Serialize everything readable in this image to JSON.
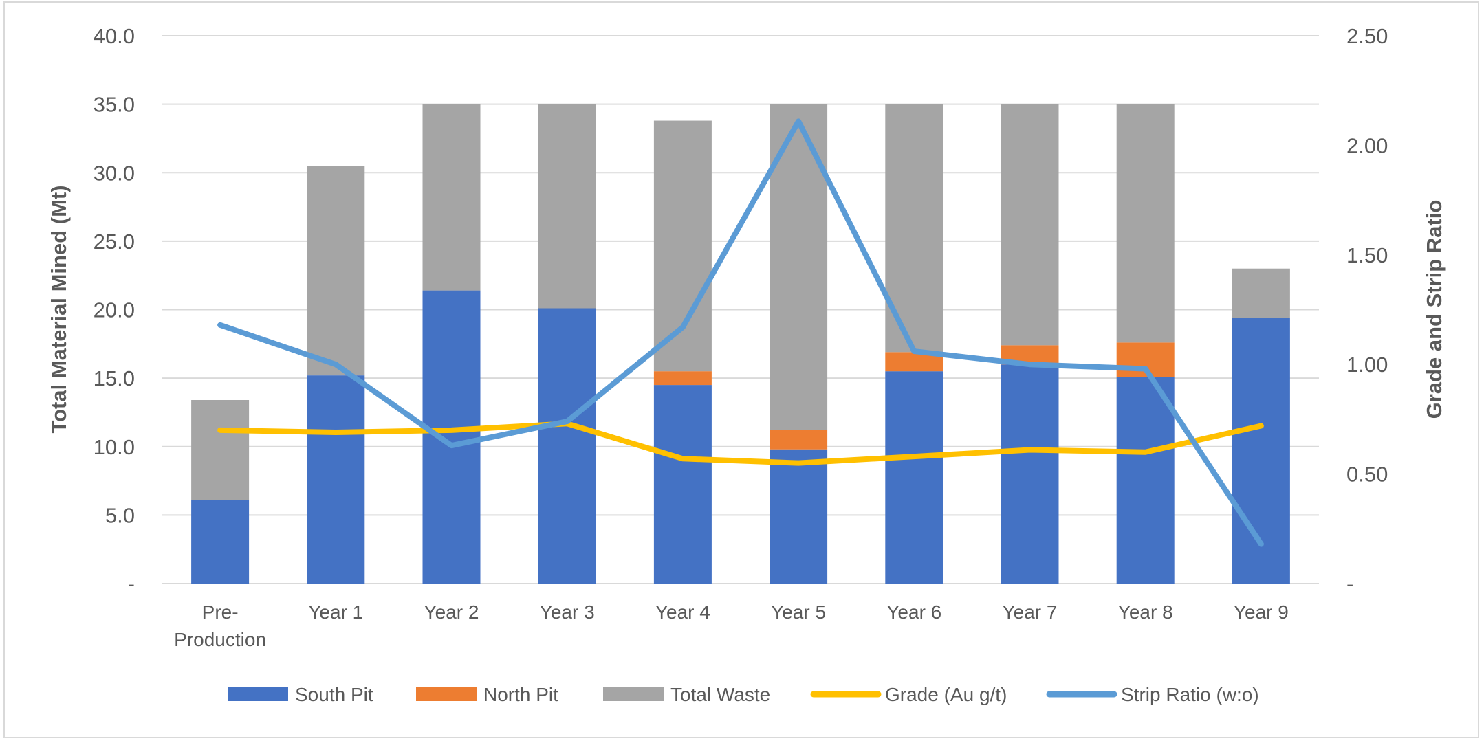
{
  "chart_data": {
    "type": "bar",
    "stacked": true,
    "categories": [
      "Pre-Production",
      "Year 1",
      "Year 2",
      "Year 3",
      "Year 4",
      "Year 5",
      "Year 6",
      "Year 7",
      "Year 8",
      "Year 9"
    ],
    "category_lines": [
      [
        "Pre-",
        "Production"
      ],
      [
        "Year 1"
      ],
      [
        "Year 2"
      ],
      [
        "Year 3"
      ],
      [
        "Year 4"
      ],
      [
        "Year 5"
      ],
      [
        "Year 6"
      ],
      [
        "Year 7"
      ],
      [
        "Year 8"
      ],
      [
        "Year 9"
      ]
    ],
    "bar_series": [
      {
        "name": "South Pit",
        "color": "#4472C4",
        "values": [
          6.1,
          15.2,
          21.4,
          20.1,
          14.5,
          9.8,
          15.5,
          16.0,
          15.1,
          19.4
        ]
      },
      {
        "name": "North Pit",
        "color": "#ED7D31",
        "values": [
          0.0,
          0.0,
          0.0,
          0.0,
          1.0,
          1.4,
          1.4,
          1.4,
          2.5,
          0.0
        ]
      },
      {
        "name": "Total Waste",
        "color": "#A5A5A5",
        "values": [
          7.3,
          15.3,
          13.6,
          14.9,
          18.3,
          23.8,
          18.1,
          17.6,
          17.4,
          3.6
        ]
      }
    ],
    "line_series": [
      {
        "name": "Grade (Au g/t)",
        "color": "#FFC000",
        "axis": "right",
        "values": [
          0.7,
          0.69,
          0.7,
          0.73,
          0.57,
          0.55,
          0.58,
          0.61,
          0.6,
          0.72
        ]
      },
      {
        "name": "Strip Ratio (w:o)",
        "color": "#5B9BD5",
        "axis": "right",
        "values": [
          1.18,
          1.0,
          0.63,
          0.74,
          1.17,
          2.11,
          1.06,
          1.0,
          0.98,
          0.18
        ]
      }
    ],
    "ylabel": "Total Material Mined (Mt)",
    "y2label": "Grade and Strip Ratio",
    "ylim": [
      0,
      40
    ],
    "y2lim": [
      0,
      2.5
    ],
    "yticks": [
      "-",
      "5.0",
      "10.0",
      "15.0",
      "20.0",
      "25.0",
      "30.0",
      "35.0",
      "40.0"
    ],
    "y2ticks": [
      "-",
      "0.50",
      "1.00",
      "1.50",
      "2.00",
      "2.50"
    ],
    "grid": true,
    "legend_position": "bottom",
    "legend": [
      "South Pit",
      "North Pit",
      "Total Waste",
      "Grade (Au g/t)",
      "Strip Ratio (w:o)"
    ]
  }
}
